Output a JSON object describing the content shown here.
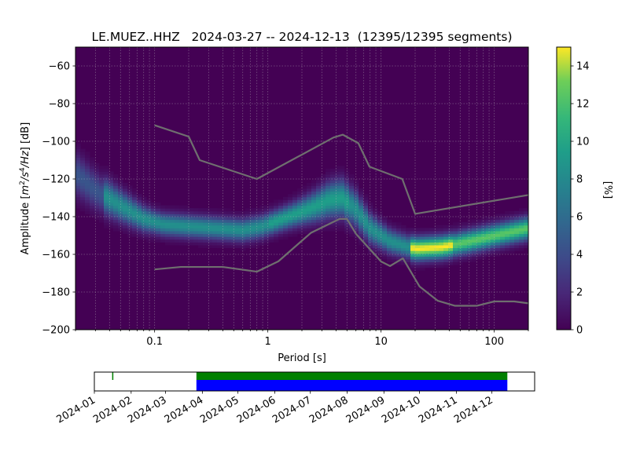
{
  "chart_data": [
    {
      "type": "heatmap",
      "title": "LE.MUEZ..HHZ   2024-03-27 -- 2024-12-13  (12395/12395 segments)",
      "xlabel": "Period [s]",
      "ylabel": "Amplitude [m²/s⁴/Hz] [dB]",
      "ylabel_parts": {
        "pre": "Amplitude [",
        "m": "m",
        "two": "2",
        "s": "/s",
        "four": "4",
        "hz": "/Hz",
        "post": "] [dB]"
      },
      "x_scale": "log",
      "xlim": [
        0.02,
        200
      ],
      "ylim": [
        -200,
        -50
      ],
      "x_ticks": [
        {
          "value": 0.1,
          "label": "0.1"
        },
        {
          "value": 1,
          "label": "1"
        },
        {
          "value": 10,
          "label": "10"
        },
        {
          "value": 100,
          "label": "100"
        }
      ],
      "y_ticks": [
        {
          "value": -60,
          "label": "−60"
        },
        {
          "value": -80,
          "label": "−80"
        },
        {
          "value": -100,
          "label": "−100"
        },
        {
          "value": -120,
          "label": "−120"
        },
        {
          "value": -140,
          "label": "−140"
        },
        {
          "value": -160,
          "label": "−160"
        },
        {
          "value": -180,
          "label": "−180"
        },
        {
          "value": -200,
          "label": "−200"
        }
      ],
      "grid": true,
      "colormap": "viridis",
      "mode_curve": [
        {
          "period": 0.02,
          "db": -117
        },
        {
          "period": 0.03,
          "db": -126
        },
        {
          "period": 0.05,
          "db": -134
        },
        {
          "period": 0.08,
          "db": -141
        },
        {
          "period": 0.12,
          "db": -144
        },
        {
          "period": 0.2,
          "db": -145
        },
        {
          "period": 0.35,
          "db": -146
        },
        {
          "period": 0.6,
          "db": -147
        },
        {
          "period": 0.9,
          "db": -145
        },
        {
          "period": 1.5,
          "db": -140
        },
        {
          "period": 2.5,
          "db": -135
        },
        {
          "period": 3.5,
          "db": -131
        },
        {
          "period": 4.5,
          "db": -130
        },
        {
          "period": 6,
          "db": -136
        },
        {
          "period": 8,
          "db": -146
        },
        {
          "period": 12,
          "db": -153
        },
        {
          "period": 20,
          "db": -157
        },
        {
          "period": 35,
          "db": -156
        },
        {
          "period": 60,
          "db": -153
        },
        {
          "period": 100,
          "db": -150
        },
        {
          "period": 200,
          "db": -146
        }
      ],
      "series": [
        {
          "values": [
            {
              "period": 0.1,
              "db": -91.5
            },
            {
              "period": 0.2,
              "db": -97.5
            },
            {
              "period": 0.25,
              "db": -110
            },
            {
              "period": 0.8,
              "db": -120
            },
            {
              "period": 3.8,
              "db": -98
            },
            {
              "period": 4.6,
              "db": -96.5
            },
            {
              "period": 6.3,
              "db": -101
            },
            {
              "period": 7.9,
              "db": -113.5
            },
            {
              "period": 15.4,
              "db": -120
            },
            {
              "period": 20,
              "db": -138.5
            },
            {
              "period": 200,
              "db": -128.5
            }
          ]
        },
        {
          "values": [
            {
              "period": 0.1,
              "db": -168
            },
            {
              "period": 0.17,
              "db": -166.7
            },
            {
              "period": 0.4,
              "db": -166.7
            },
            {
              "period": 0.8,
              "db": -169.2
            },
            {
              "period": 1.24,
              "db": -163.7
            },
            {
              "period": 2.4,
              "db": -148.6
            },
            {
              "period": 4.3,
              "db": -141.2
            },
            {
              "period": 5.0,
              "db": -141.2
            },
            {
              "period": 6.0,
              "db": -149.1
            },
            {
              "period": 10,
              "db": -163.8
            },
            {
              "period": 12,
              "db": -166.2
            },
            {
              "period": 15.6,
              "db": -162.1
            },
            {
              "period": 21.9,
              "db": -177.1
            },
            {
              "period": 31.6,
              "db": -184.6
            },
            {
              "period": 45,
              "db": -187.3
            },
            {
              "period": 70,
              "db": -187.3
            },
            {
              "period": 100,
              "db": -185
            },
            {
              "period": 150,
              "db": -185
            },
            {
              "period": 200,
              "db": -186
            }
          ]
        }
      ],
      "colorbar": {
        "label": "[%]",
        "range": [
          0,
          15
        ],
        "ticks": [
          {
            "value": 0,
            "label": "0"
          },
          {
            "value": 2,
            "label": "2"
          },
          {
            "value": 4,
            "label": "4"
          },
          {
            "value": 6,
            "label": "6"
          },
          {
            "value": 8,
            "label": "8"
          },
          {
            "value": 10,
            "label": "10"
          },
          {
            "value": 12,
            "label": "12"
          },
          {
            "value": 14,
            "label": "14"
          }
        ]
      }
    },
    {
      "type": "timeline",
      "xlim": [
        "2024-01-01",
        "2025-01-06"
      ],
      "x_ticks": [
        {
          "value": "2024-01-01",
          "label": "2024-01"
        },
        {
          "value": "2024-02-01",
          "label": "2024-02"
        },
        {
          "value": "2024-03-01",
          "label": "2024-03"
        },
        {
          "value": "2024-04-01",
          "label": "2024-04"
        },
        {
          "value": "2024-05-01",
          "label": "2024-05"
        },
        {
          "value": "2024-06-01",
          "label": "2024-06"
        },
        {
          "value": "2024-07-01",
          "label": "2024-07"
        },
        {
          "value": "2024-08-01",
          "label": "2024-08"
        },
        {
          "value": "2024-09-01",
          "label": "2024-09"
        },
        {
          "value": "2024-10-01",
          "label": "2024-10"
        },
        {
          "value": "2024-11-01",
          "label": "2024-11"
        },
        {
          "value": "2024-12-01",
          "label": "2024-12"
        }
      ],
      "data_available": [
        {
          "start": "2024-01-16",
          "end": "2024-01-16"
        },
        {
          "start": "2024-03-27",
          "end": "2024-12-13"
        }
      ],
      "processed": [
        {
          "start": "2024-03-27",
          "end": "2024-12-13"
        }
      ],
      "colors": {
        "data_available": "#008000",
        "processed": "#0000ff"
      }
    }
  ]
}
